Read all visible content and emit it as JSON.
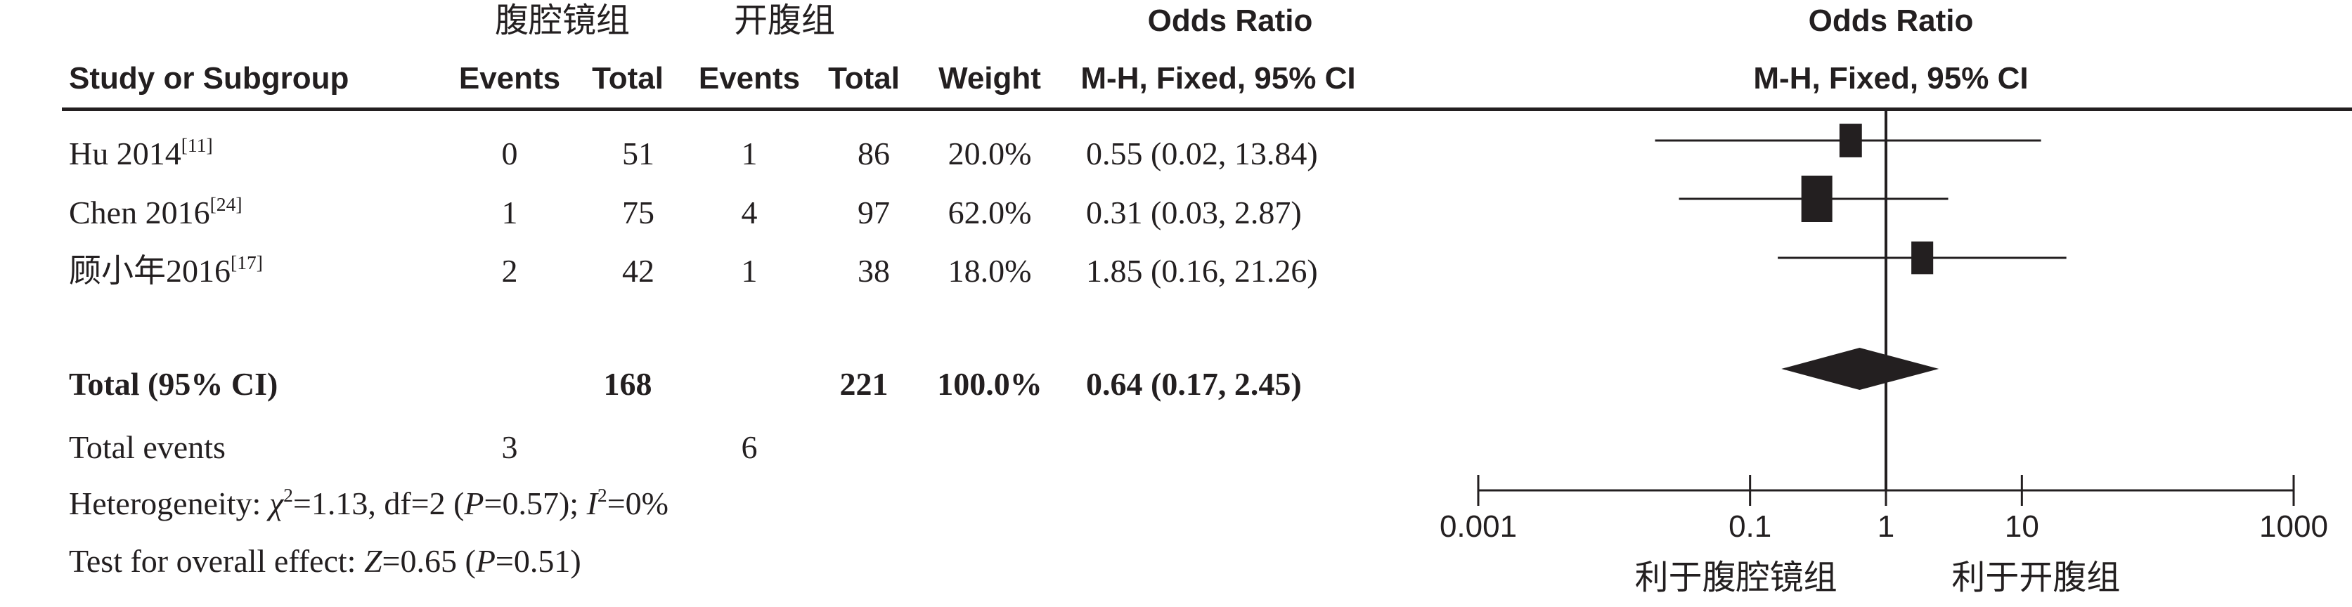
{
  "header": {
    "group1": "腹腔镜组",
    "group2": "开腹组",
    "odds_ratio": "Odds Ratio",
    "odds_ratio_plot": "Odds Ratio",
    "study_col": "Study or Subgroup",
    "events1": "Events",
    "total1": "Total",
    "events2": "Events",
    "total2": "Total",
    "weight": "Weight",
    "method": "M-H, Fixed, 95% CI",
    "method_plot": "M-H, Fixed, 95% CI"
  },
  "studies": [
    {
      "name": "Hu 2014",
      "ref": "[11]",
      "events1": "0",
      "total1": "51",
      "events2": "1",
      "total2": "86",
      "weight": "20.0%",
      "ci_text": "0.55 (0.02, 13.84)"
    },
    {
      "name": "Chen 2016",
      "ref": "[24]",
      "events1": "1",
      "total1": "75",
      "events2": "4",
      "total2": "97",
      "weight": "62.0%",
      "ci_text": "0.31 (0.03, 2.87)"
    },
    {
      "name": "顾小年2016",
      "ref": "[17]",
      "events1": "2",
      "total1": "42",
      "events2": "1",
      "total2": "38",
      "weight": "18.0%",
      "ci_text": "1.85 (0.16, 21.26)"
    }
  ],
  "total": {
    "label": "Total (95% CI)",
    "total1": "168",
    "total2": "221",
    "weight": "100.0%",
    "ci_text": "0.64 (0.17, 2.45)"
  },
  "total_events": {
    "label": "Total events",
    "events1": "3",
    "events2": "6"
  },
  "heterogeneity": {
    "label": "Heterogeneity: ",
    "chi_sym": "χ",
    "chi_sup": "2",
    "chi_val": "=1.13, df=2 (",
    "p_sym": "P",
    "p_val": "=0.57); ",
    "i_sym": "I",
    "i_sup": "2",
    "i_val": "=0%"
  },
  "overall": {
    "label": "Test for overall effect: ",
    "z_sym": "Z",
    "z_val": "=0.65 (",
    "p_sym": "P",
    "p_val": "=0.51)"
  },
  "axis": {
    "favours_left": "利于腹腔镜组",
    "favours_right": "利于开腹组"
  },
  "chart_data": {
    "type": "forest",
    "scale": "log",
    "xlim": [
      0.001,
      1000
    ],
    "ticks": [
      0.001,
      0.1,
      1,
      10,
      1000
    ],
    "tick_labels": [
      "0.001",
      "0.1",
      "1",
      "10",
      "1000"
    ],
    "reference_line": 1,
    "xlabel_left": "利于腹腔镜组",
    "xlabel_right": "利于开腹组",
    "studies": [
      {
        "name": "Hu 2014",
        "or": 0.55,
        "lower": 0.02,
        "upper": 13.84,
        "weight": 20.0
      },
      {
        "name": "Chen 2016",
        "or": 0.31,
        "lower": 0.03,
        "upper": 2.87,
        "weight": 62.0
      },
      {
        "name": "顾小年2016",
        "or": 1.85,
        "lower": 0.16,
        "upper": 21.26,
        "weight": 18.0
      }
    ],
    "pooled": {
      "name": "Total (95% CI)",
      "or": 0.64,
      "lower": 0.17,
      "upper": 2.45
    }
  }
}
